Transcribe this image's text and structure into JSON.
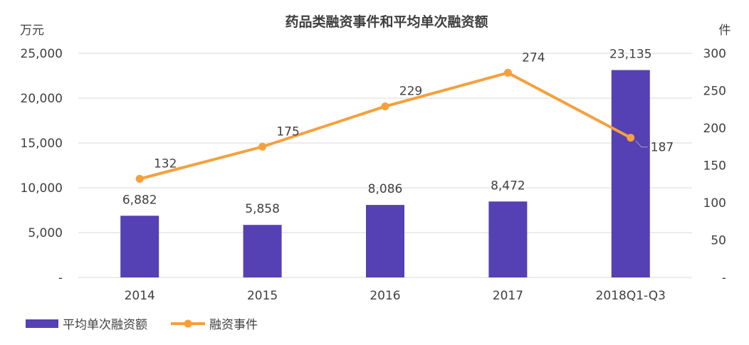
{
  "chart_data": {
    "type": "bar+line",
    "title": "药品类融资事件和平均单次融资额",
    "categories": [
      "2014",
      "2015",
      "2016",
      "2017",
      "2018Q1-Q3"
    ],
    "series": [
      {
        "name": "平均单次融资额",
        "type": "bar",
        "axis": "left",
        "color": "#5540b4",
        "values": [
          6882,
          5858,
          8086,
          8472,
          23135
        ],
        "labels": [
          "6,882",
          "5,858",
          "8,086",
          "8,472",
          "23,135"
        ]
      },
      {
        "name": "融资事件",
        "type": "line",
        "axis": "right",
        "color": "#f5a03c",
        "values": [
          132,
          175,
          229,
          274,
          187
        ],
        "labels": [
          "132",
          "175",
          "229",
          "274",
          "187"
        ]
      }
    ],
    "left_axis": {
      "unit": "万元",
      "ylim": [
        0,
        25000
      ],
      "ticks": [
        0,
        5000,
        10000,
        15000,
        20000,
        25000
      ],
      "tick_labels": [
        "-",
        "5,000",
        "10,000",
        "15,000",
        "20,000",
        "25,000"
      ]
    },
    "right_axis": {
      "unit": "件",
      "ylim": [
        0,
        300
      ],
      "ticks": [
        0,
        50,
        100,
        150,
        200,
        250,
        300
      ],
      "tick_labels": [
        "-",
        "50",
        "100",
        "150",
        "200",
        "250",
        "300"
      ]
    },
    "grid": true,
    "legend": "bottom-left"
  }
}
